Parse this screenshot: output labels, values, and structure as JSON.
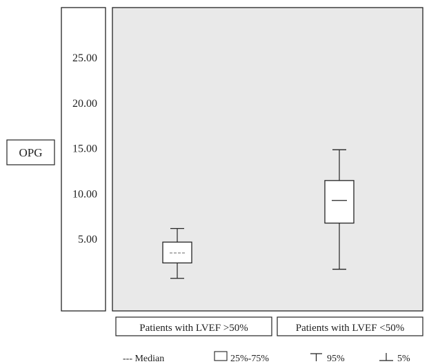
{
  "chart_data": {
    "type": "boxplot",
    "ylabel": "OPG",
    "ylim": [
      -3.0,
      30.5
    ],
    "y_ticks": [
      5,
      10,
      15,
      20,
      25
    ],
    "y_tick_labels": [
      "5.00",
      "10.00",
      "15.00",
      "20.00",
      "25.00"
    ],
    "categories": [
      "Patients with LVEF >50%",
      "Patients with LVEF <50%"
    ],
    "boxes": [
      {
        "category": "Patients with LVEF >50%",
        "p5": 0.6,
        "q1": 2.3,
        "median": 3.4,
        "q3": 4.6,
        "p95": 6.1,
        "median_style": "dashed"
      },
      {
        "category": "Patients with LVEF <50%",
        "p5": 1.6,
        "q1": 6.7,
        "median": 9.2,
        "q3": 11.4,
        "p95": 14.8,
        "median_style": "solid"
      }
    ],
    "legend": [
      {
        "symbol": "median",
        "label": "--- Median"
      },
      {
        "symbol": "box",
        "label": "25%-75%"
      },
      {
        "symbol": "p95",
        "label": "95%"
      },
      {
        "symbol": "p5",
        "label": "5%"
      }
    ],
    "grid": false,
    "colors": {
      "plot_background": "#e9e9e9",
      "frame": "#222222"
    }
  }
}
